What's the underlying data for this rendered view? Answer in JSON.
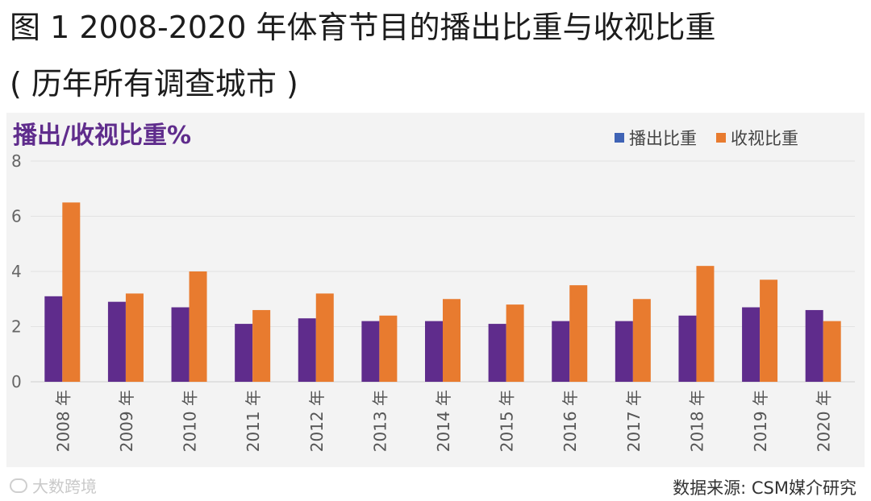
{
  "header": {
    "title": "图 1 2008-2020 年体育节目的播出比重与收视比重",
    "subtitle": "( 历年所有调查城市 )"
  },
  "chart_data": {
    "type": "bar",
    "ylabel": "播出/收视比重%",
    "ylim": [
      0,
      8
    ],
    "yticks": [
      0,
      2,
      4,
      6,
      8
    ],
    "grid": true,
    "legend_position": "top-right",
    "categories": [
      "2008 年",
      "2009 年",
      "2010 年",
      "2011 年",
      "2012 年",
      "2013 年",
      "2014 年",
      "2015 年",
      "2016 年",
      "2017 年",
      "2018 年",
      "2019 年",
      "2020 年"
    ],
    "series": [
      {
        "name": "播出比重",
        "color": "#5f2c8c",
        "values": [
          3.1,
          2.9,
          2.7,
          2.1,
          2.3,
          2.2,
          2.2,
          2.1,
          2.2,
          2.2,
          2.4,
          2.7,
          2.6
        ]
      },
      {
        "name": "收视比重",
        "color": "#e87b2f",
        "values": [
          6.5,
          3.2,
          4.0,
          2.6,
          3.2,
          2.4,
          3.0,
          2.8,
          3.5,
          3.0,
          4.2,
          3.7,
          2.2
        ]
      }
    ],
    "legend_swatch_colors": [
      "#3f63b5",
      "#e87b2f"
    ]
  },
  "footer": {
    "source": "数据来源: CSM媒介研究",
    "watermark": "大数跨境"
  }
}
